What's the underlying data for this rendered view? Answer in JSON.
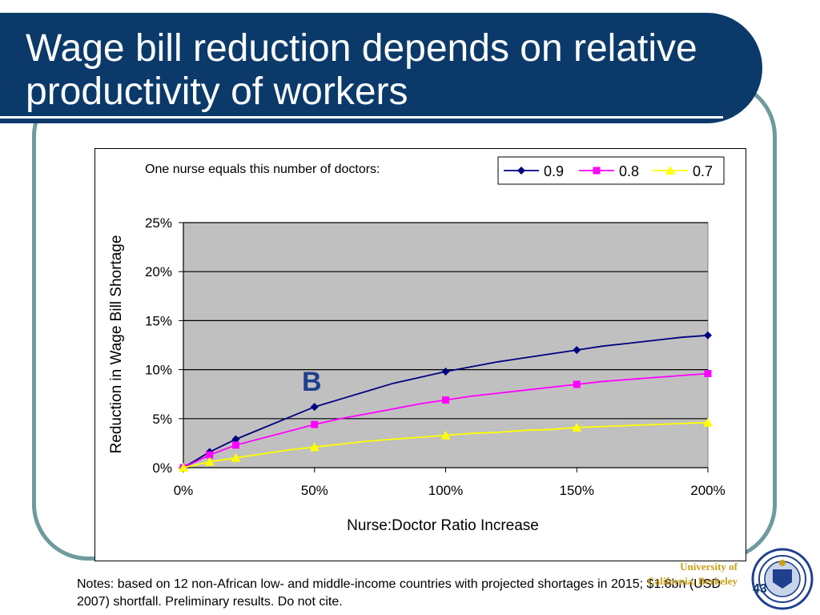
{
  "slide": {
    "title": "Wage bill reduction depends on relative productivity of workers",
    "notes": "Notes: based on 12 non-African low- and middle-income countries with projected shortages in 2015; $1.8bn (USD 2007) shortfall. Preliminary results. Do not cite.",
    "university_line1": "University of",
    "university_line2": "California, Berkeley",
    "page_number": "43"
  },
  "colors": {
    "title_band": "#0b3a6a",
    "frame": "#6f9a9e",
    "plot_bg": "#c0c0c0",
    "gold": "#c8a018"
  },
  "chart_data": {
    "type": "line",
    "title": "One nurse equals this number of doctors:",
    "xlabel": "Nurse:Doctor Ratio Increase",
    "ylabel": "Reduction in Wage Bill Shortage",
    "x_ticks": [
      "0%",
      "50%",
      "100%",
      "150%",
      "200%"
    ],
    "y_ticks": [
      "0%",
      "5%",
      "10%",
      "15%",
      "20%",
      "25%"
    ],
    "xlim": [
      0,
      200
    ],
    "ylim": [
      0,
      25
    ],
    "grid": "horizontal",
    "legend_position": "top-right",
    "annotation": "B",
    "series": [
      {
        "name": "0.9",
        "color": "#000080",
        "marker": "diamond",
        "x": [
          0,
          10,
          20,
          30,
          40,
          50,
          60,
          70,
          80,
          90,
          100,
          110,
          120,
          130,
          140,
          150,
          160,
          170,
          180,
          190,
          200
        ],
        "y": [
          0,
          1.6,
          2.9,
          4.0,
          5.1,
          6.2,
          7.0,
          7.8,
          8.6,
          9.2,
          9.8,
          10.3,
          10.8,
          11.2,
          11.6,
          12.0,
          12.4,
          12.7,
          13.0,
          13.3,
          13.5
        ],
        "markers_at": [
          0,
          10,
          20,
          50,
          100,
          150,
          200
        ]
      },
      {
        "name": "0.8",
        "color": "#ff00ff",
        "marker": "square",
        "x": [
          0,
          10,
          20,
          30,
          40,
          50,
          60,
          70,
          80,
          90,
          100,
          110,
          120,
          130,
          140,
          150,
          160,
          170,
          180,
          190,
          200
        ],
        "y": [
          0,
          1.3,
          2.3,
          3.0,
          3.7,
          4.4,
          5.0,
          5.5,
          6.0,
          6.5,
          6.9,
          7.3,
          7.6,
          7.9,
          8.2,
          8.5,
          8.8,
          9.0,
          9.2,
          9.4,
          9.6
        ],
        "markers_at": [
          0,
          10,
          20,
          50,
          100,
          150,
          200
        ]
      },
      {
        "name": "0.7",
        "color": "#ffff00",
        "marker": "triangle",
        "x": [
          0,
          10,
          20,
          30,
          40,
          50,
          60,
          70,
          80,
          90,
          100,
          110,
          120,
          130,
          140,
          150,
          160,
          170,
          180,
          190,
          200
        ],
        "y": [
          0,
          0.6,
          1.0,
          1.4,
          1.8,
          2.1,
          2.4,
          2.7,
          2.9,
          3.1,
          3.3,
          3.5,
          3.6,
          3.8,
          3.9,
          4.1,
          4.2,
          4.3,
          4.4,
          4.5,
          4.6
        ],
        "markers_at": [
          0,
          10,
          20,
          50,
          100,
          150,
          200
        ]
      }
    ]
  }
}
